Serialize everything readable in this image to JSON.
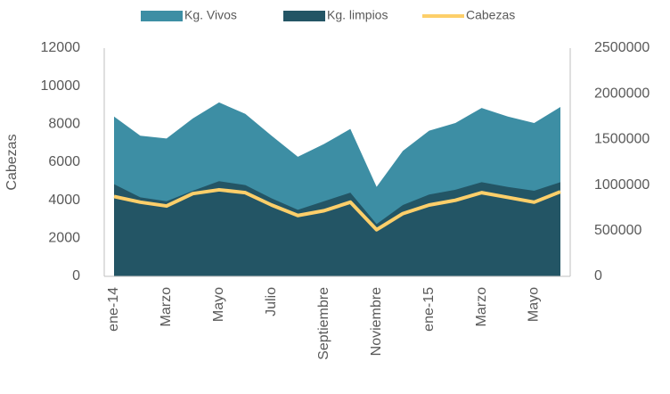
{
  "chart_data": {
    "type": "area-line",
    "categories": [
      "ene-14",
      null,
      "Marzo",
      null,
      "Mayo",
      null,
      "Julio",
      null,
      "Septiembre",
      null,
      "Noviembre",
      null,
      "ene-15",
      null,
      "Marzo",
      null,
      "Mayo",
      null
    ],
    "series": [
      {
        "name": "Kg. Vivos",
        "color": "#3d8ea4",
        "kind": "area",
        "axis": "y2",
        "values": [
          1750000,
          1540000,
          1510000,
          1730000,
          1905000,
          1780000,
          1540000,
          1310000,
          1450000,
          1615000,
          980000,
          1375000,
          1595000,
          1680000,
          1845000,
          1750000,
          1680000,
          1855000
        ]
      },
      {
        "name": "Kg. limpios",
        "color": "#235565",
        "kind": "area",
        "axis": "y2",
        "values": [
          1010000,
          865000,
          823000,
          937000,
          1042000,
          1000000,
          854000,
          729000,
          823000,
          917000,
          573000,
          781000,
          896000,
          948000,
          1031000,
          979000,
          937000,
          1031000
        ]
      },
      {
        "name": "Cabezas",
        "color": "#fdcf6a",
        "kind": "line",
        "values": [
          4200,
          3900,
          3700,
          4350,
          4550,
          4400,
          3750,
          3200,
          3450,
          3900,
          2450,
          3300,
          3750,
          4000,
          4400,
          4150,
          3900,
          4450
        ]
      }
    ],
    "y_label": "Cabezas",
    "ylim": [
      0,
      12000
    ],
    "yticks": [
      0,
      2000,
      4000,
      6000,
      8000,
      10000,
      12000
    ],
    "y2lim": [
      0,
      2500000
    ],
    "y2ticks": [
      0,
      500000,
      1000000,
      1500000,
      2000000,
      2500000
    ],
    "legend": "top"
  }
}
